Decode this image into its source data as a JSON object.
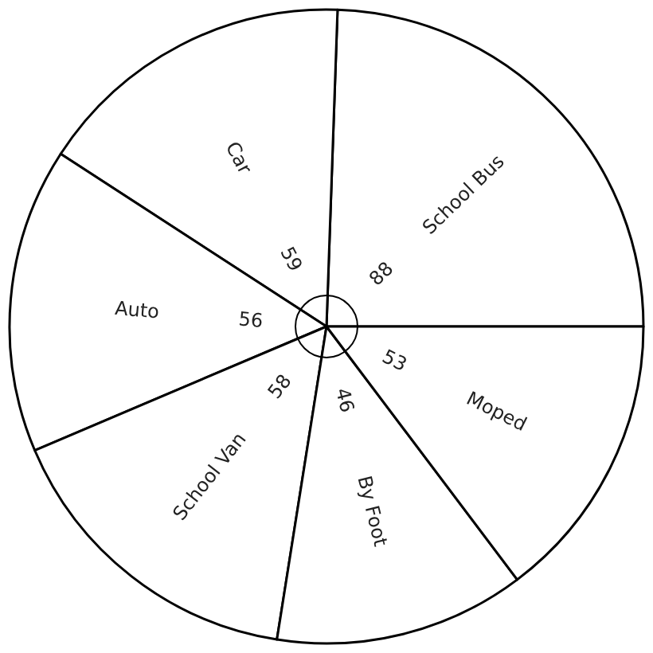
{
  "chart_data": {
    "type": "pie",
    "categories": [
      "School Bus",
      "Car",
      "Auto",
      "School Van",
      "By Foot",
      "Moped"
    ],
    "values": [
      88,
      59,
      56,
      58,
      46,
      53
    ],
    "colors": [
      "#ffffff",
      "#ffffff",
      "#ffffff",
      "#ffffff",
      "#ffffff",
      "#ffffff"
    ],
    "data_labels": true
  }
}
